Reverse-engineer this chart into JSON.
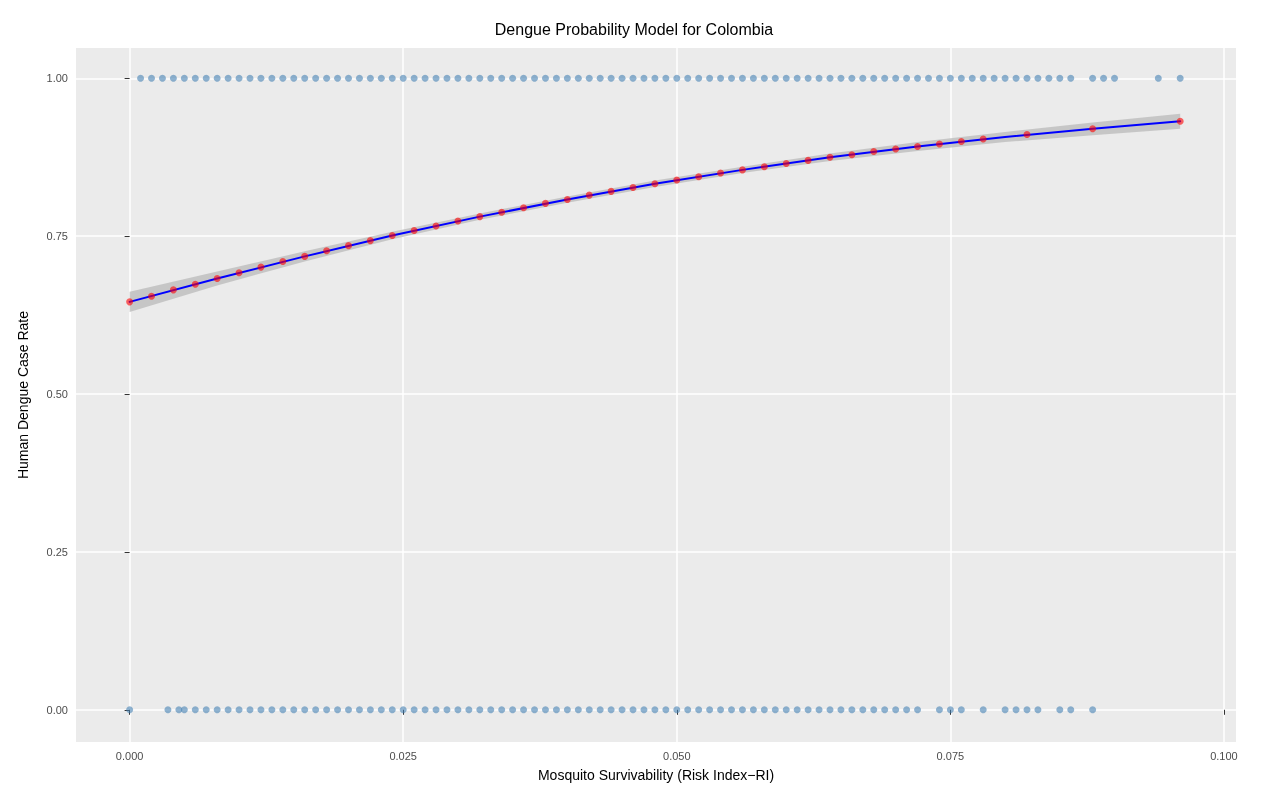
{
  "chart_data": {
    "type": "scatter",
    "title": "Dengue Probability Model for Colombia",
    "xlabel": "Mosquito Survivability (Risk Index−RI)",
    "ylabel": "Human Dengue Case Rate",
    "xlim": [
      -0.0049,
      0.1011
    ],
    "xticks": [
      {
        "value": 0,
        "label": "0.000"
      },
      {
        "value": 0.025,
        "label": "0.025"
      },
      {
        "value": 0.05,
        "label": "0.050"
      },
      {
        "value": 0.075,
        "label": "0.075"
      },
      {
        "value": 0.1,
        "label": "0.100"
      }
    ],
    "ylim": [
      -0.051,
      1.048
    ],
    "yticks": [
      {
        "value": 0,
        "label": "0.00"
      },
      {
        "value": 0.25,
        "label": "0.25"
      },
      {
        "value": 0.5,
        "label": "0.50"
      },
      {
        "value": 0.75,
        "label": "0.75"
      },
      {
        "value": 1,
        "label": "1.00"
      }
    ],
    "grid": true,
    "marker": "circle",
    "series": [
      {
        "color": "#4682b4",
        "x": [
          0.001,
          0.002,
          0.003,
          0.004,
          0.005,
          0.006,
          0.007,
          0.008,
          0.009,
          0.01,
          0.011,
          0.012,
          0.013,
          0.014,
          0.015,
          0.016,
          0.017,
          0.018,
          0.019,
          0.02,
          0.021,
          0.022,
          0.023,
          0.024,
          0.025,
          0.026,
          0.027,
          0.028,
          0.029,
          0.03,
          0.031,
          0.032,
          0.033,
          0.034,
          0.035,
          0.036,
          0.037,
          0.038,
          0.039,
          0.04,
          0.041,
          0.042,
          0.043,
          0.044,
          0.045,
          0.046,
          0.047,
          0.048,
          0.049,
          0.05,
          0.051,
          0.052,
          0.053,
          0.054,
          0.055,
          0.056,
          0.057,
          0.058,
          0.059,
          0.06,
          0.061,
          0.062,
          0.063,
          0.064,
          0.065,
          0.066,
          0.067,
          0.068,
          0.069,
          0.07,
          0.071,
          0.072,
          0.073,
          0.074,
          0.075,
          0.076,
          0.077,
          0.078,
          0.079,
          0.08,
          0.081,
          0.082,
          0.083,
          0.084,
          0.085,
          0.086,
          0.088,
          0.089,
          0.09,
          0.094,
          0.096
        ],
        "values": [
          1,
          1,
          1,
          1,
          1,
          1,
          1,
          1,
          1,
          1,
          1,
          1,
          1,
          1,
          1,
          1,
          1,
          1,
          1,
          1,
          1,
          1,
          1,
          1,
          1,
          1,
          1,
          1,
          1,
          1,
          1,
          1,
          1,
          1,
          1,
          1,
          1,
          1,
          1,
          1,
          1,
          1,
          1,
          1,
          1,
          1,
          1,
          1,
          1,
          1,
          1,
          1,
          1,
          1,
          1,
          1,
          1,
          1,
          1,
          1,
          1,
          1,
          1,
          1,
          1,
          1,
          1,
          1,
          1,
          1,
          1,
          1,
          1,
          1,
          1,
          1,
          1,
          1,
          1,
          1,
          1,
          1,
          1,
          1,
          1,
          1,
          1,
          1,
          1,
          1,
          1
        ]
      },
      {
        "color": "#4682b4",
        "x": [
          0.0,
          0.0035,
          0.0045,
          0.005,
          0.006,
          0.007,
          0.008,
          0.009,
          0.01,
          0.011,
          0.012,
          0.013,
          0.014,
          0.015,
          0.016,
          0.017,
          0.018,
          0.019,
          0.02,
          0.021,
          0.022,
          0.023,
          0.024,
          0.025,
          0.026,
          0.027,
          0.028,
          0.029,
          0.03,
          0.031,
          0.032,
          0.033,
          0.034,
          0.035,
          0.036,
          0.037,
          0.038,
          0.039,
          0.04,
          0.041,
          0.042,
          0.043,
          0.044,
          0.045,
          0.046,
          0.047,
          0.048,
          0.049,
          0.05,
          0.051,
          0.052,
          0.053,
          0.054,
          0.055,
          0.056,
          0.057,
          0.058,
          0.059,
          0.06,
          0.061,
          0.062,
          0.063,
          0.064,
          0.065,
          0.066,
          0.067,
          0.068,
          0.069,
          0.07,
          0.071,
          0.072,
          0.074,
          0.075,
          0.076,
          0.078,
          0.08,
          0.081,
          0.082,
          0.083,
          0.085,
          0.086,
          0.088
        ],
        "values": [
          0,
          0,
          0,
          0,
          0,
          0,
          0,
          0,
          0,
          0,
          0,
          0,
          0,
          0,
          0,
          0,
          0,
          0,
          0,
          0,
          0,
          0,
          0,
          0,
          0,
          0,
          0,
          0,
          0,
          0,
          0,
          0,
          0,
          0,
          0,
          0,
          0,
          0,
          0,
          0,
          0,
          0,
          0,
          0,
          0,
          0,
          0,
          0,
          0,
          0,
          0,
          0,
          0,
          0,
          0,
          0,
          0,
          0,
          0,
          0,
          0,
          0,
          0,
          0,
          0,
          0,
          0,
          0,
          0,
          0,
          0,
          0,
          0,
          0,
          0,
          0,
          0,
          0,
          0,
          0,
          0,
          0
        ]
      },
      {
        "type": "line",
        "color": "#0000ff",
        "marker": "none",
        "line_style": "solid",
        "x": [
          0,
          0.008,
          0.016,
          0.024,
          0.032,
          0.04,
          0.048,
          0.056,
          0.064,
          0.072,
          0.08,
          0.088,
          0.096
        ],
        "values": [
          0.646,
          0.683,
          0.718,
          0.751,
          0.781,
          0.808,
          0.833,
          0.855,
          0.875,
          0.892,
          0.907,
          0.92,
          0.932
        ],
        "lower": [
          0.63,
          0.672,
          0.71,
          0.745,
          0.776,
          0.803,
          0.828,
          0.85,
          0.869,
          0.885,
          0.899,
          0.91,
          0.92
        ],
        "upper": [
          0.662,
          0.694,
          0.726,
          0.757,
          0.786,
          0.813,
          0.838,
          0.86,
          0.881,
          0.899,
          0.915,
          0.93,
          0.944
        ]
      },
      {
        "color": "#ff0000",
        "x": [
          0,
          0.002,
          0.004,
          0.006,
          0.008,
          0.01,
          0.012,
          0.014,
          0.016,
          0.018,
          0.02,
          0.022,
          0.024,
          0.026,
          0.028,
          0.03,
          0.032,
          0.034,
          0.036,
          0.038,
          0.04,
          0.042,
          0.044,
          0.046,
          0.048,
          0.05,
          0.052,
          0.054,
          0.056,
          0.058,
          0.06,
          0.062,
          0.064,
          0.066,
          0.068,
          0.07,
          0.072,
          0.074,
          0.076,
          0.078,
          0.082,
          0.088,
          0.096
        ],
        "values": [
          0.646,
          0.655,
          0.665,
          0.674,
          0.683,
          0.692,
          0.701,
          0.71,
          0.718,
          0.727,
          0.735,
          0.743,
          0.751,
          0.759,
          0.766,
          0.774,
          0.781,
          0.788,
          0.795,
          0.802,
          0.808,
          0.815,
          0.821,
          0.827,
          0.833,
          0.839,
          0.844,
          0.85,
          0.855,
          0.86,
          0.865,
          0.87,
          0.875,
          0.879,
          0.884,
          0.888,
          0.892,
          0.896,
          0.9,
          0.904,
          0.911,
          0.92,
          0.932
        ]
      }
    ]
  }
}
